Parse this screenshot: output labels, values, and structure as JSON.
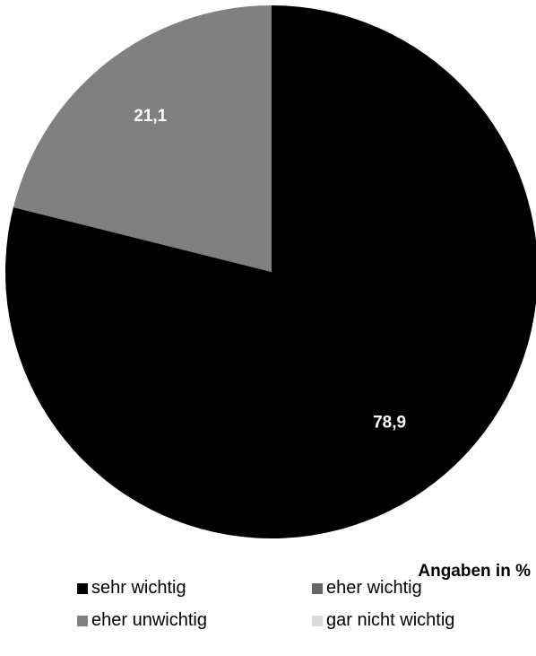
{
  "chart_data": {
    "type": "pie",
    "categories": [
      "sehr wichtig",
      "eher wichtig",
      "eher unwichtig",
      "gar nicht wichtig"
    ],
    "values": [
      78.9,
      0,
      21.1,
      0
    ],
    "value_labels": [
      "78,9",
      "",
      "21,1",
      ""
    ],
    "colors": [
      "#000000",
      "#666666",
      "#808080",
      "#d9d9d9"
    ],
    "start_angle": "12 o'clock",
    "direction": "clockwise",
    "legend_position": "bottom",
    "note": "Angaben in %"
  }
}
